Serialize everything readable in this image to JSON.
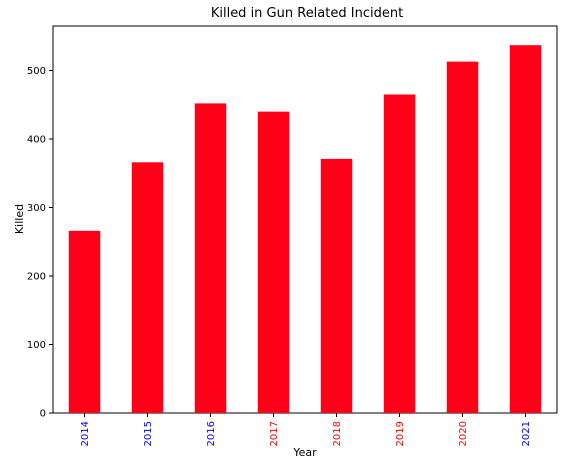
{
  "chart_data": {
    "type": "bar",
    "title": "Killed in Gun Related Incident",
    "xlabel": "Year",
    "ylabel": "Killed",
    "categories": [
      "2014",
      "2015",
      "2016",
      "2017",
      "2018",
      "2019",
      "2020",
      "2021"
    ],
    "values": [
      266,
      366,
      452,
      440,
      371,
      465,
      513,
      537
    ],
    "ylim": [
      0,
      565
    ],
    "yticks": [
      0,
      100,
      200,
      300,
      400,
      500
    ],
    "grid": false,
    "legend": "none",
    "bar_color": "#ff0019",
    "tick_label_colors": [
      "#0000ff",
      "#0000ff",
      "#0000ff",
      "#ff0000",
      "#ff0000",
      "#ff0000",
      "#ff0000",
      "#0000ff"
    ]
  }
}
